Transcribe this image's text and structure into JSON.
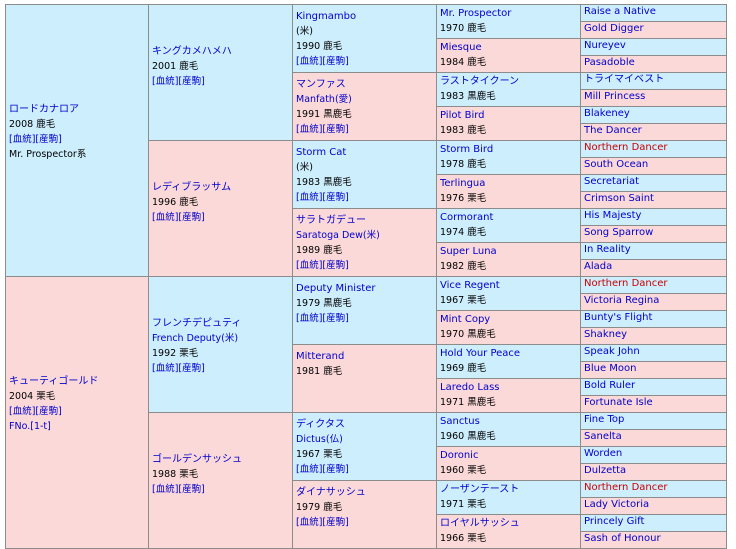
{
  "pedigree": {
    "horse": {
      "name": "ロードカナロア",
      "year": "2008 鹿毛",
      "links": "[血統][産駒]",
      "line": "Mr. Prospector系",
      "sire": {
        "name": "キングカメハメハ",
        "year": "2001 鹿毛",
        "links": "[血統][産駒]",
        "sire": {
          "name": "Kingmambo",
          "country": "(米)",
          "year": "1990 鹿毛",
          "links": "[血統][産駒]",
          "sire": {
            "name": "Mr. Prospector",
            "year": "1970 鹿毛",
            "sire": "Raise a Native",
            "dam": "Gold Digger"
          },
          "dam": {
            "name": "Miesque",
            "year": "1984 鹿毛",
            "sire": "Nureyev",
            "dam": "Pasadoble"
          }
        },
        "dam": {
          "name": "マンファス",
          "alt": "Manfath(愛)",
          "year": "1991 黒鹿毛",
          "links": "[血統][産駒]",
          "sire": {
            "name": "ラストタイクーン",
            "year": "1983 黒鹿毛",
            "sire": "トライマイベスト",
            "dam": "Mill Princess"
          },
          "dam": {
            "name": "Pilot Bird",
            "year": "1983 鹿毛",
            "sire": "Blakeney",
            "dam": "The Dancer"
          }
        }
      },
      "dam": {
        "name": "レディブラッサム",
        "year": "1996 鹿毛",
        "links": "[血統][産駒]",
        "sire": {
          "name": "Storm Cat",
          "country": "(米)",
          "year": "1983 黒鹿毛",
          "links": "[血統][産駒]",
          "sire": {
            "name": "Storm Bird",
            "year": "1978 鹿毛",
            "sire": "Northern Dancer",
            "dam": "South Ocean"
          },
          "dam": {
            "name": "Terlingua",
            "year": "1976 栗毛",
            "sire": "Secretariat",
            "dam": "Crimson Saint"
          }
        },
        "dam": {
          "name": "サラトガデュー",
          "alt": "Saratoga Dew(米)",
          "year": "1989 鹿毛",
          "links": "[血統][産駒]",
          "sire": {
            "name": "Cormorant",
            "year": "1974 鹿毛",
            "sire": "His Majesty",
            "dam": "Song Sparrow"
          },
          "dam": {
            "name": "Super Luna",
            "year": "1982 鹿毛",
            "sire": "In Reality",
            "dam": "Alada"
          }
        }
      }
    },
    "mare": {
      "name": "キューティゴールド",
      "year": "2004 栗毛",
      "links": "[血統][産駒]",
      "family": "FNo.[1-t]",
      "sire": {
        "name": "フレンチデピュティ",
        "alt": "French Deputy(米)",
        "year": "1992 栗毛",
        "links": "[血統][産駒]",
        "sire": {
          "name": "Deputy Minister",
          "year": "1979 黒鹿毛",
          "links": "[血統][産駒]",
          "sire": {
            "name": "Vice Regent",
            "year": "1967 栗毛",
            "sire": "Northern Dancer",
            "dam": "Victoria Regina"
          },
          "dam": {
            "name": "Mint Copy",
            "year": "1970 黒鹿毛",
            "sire": "Bunty's Flight",
            "dam": "Shakney"
          }
        },
        "dam": {
          "name": "Mitterand",
          "year": "1981 鹿毛",
          "sire": {
            "name": "Hold Your Peace",
            "year": "1969 鹿毛",
            "sire": "Speak John",
            "dam": "Blue Moon"
          },
          "dam": {
            "name": "Laredo Lass",
            "year": "1971 黒鹿毛",
            "sire": "Bold Ruler",
            "dam": "Fortunate Isle"
          }
        }
      },
      "dam": {
        "name": "ゴールデンサッシュ",
        "year": "1988 栗毛",
        "links": "[血統][産駒]",
        "sire": {
          "name": "ディクタス",
          "alt": "Dictus(仏)",
          "year": "1967 栗毛",
          "links": "[血統][産駒]",
          "sire": {
            "name": "Sanctus",
            "year": "1960 黒鹿毛",
            "sire": "Fine Top",
            "dam": "Sanelta"
          },
          "dam": {
            "name": "Doronic",
            "year": "1960 栗毛",
            "sire": "Worden",
            "dam": "Dulzetta"
          }
        },
        "dam": {
          "name": "ダイナサッシュ",
          "year": "1979 鹿毛",
          "links": "[血統][産駒]",
          "sire": {
            "name": "ノーザンテースト",
            "year": "1971 栗毛",
            "sire": "Northern Dancer",
            "dam": "Lady Victoria"
          },
          "dam": {
            "name": "ロイヤルサッシュ",
            "year": "1966 栗毛",
            "sire": "Princely Gift",
            "dam": "Sash of Honour"
          }
        }
      }
    }
  },
  "colors": {
    "male_bg": "#cdeefc",
    "female_bg": "#fcd9d9",
    "link": "#0000cc",
    "highlight": "#cc0000",
    "border": "#8c8c8c"
  }
}
